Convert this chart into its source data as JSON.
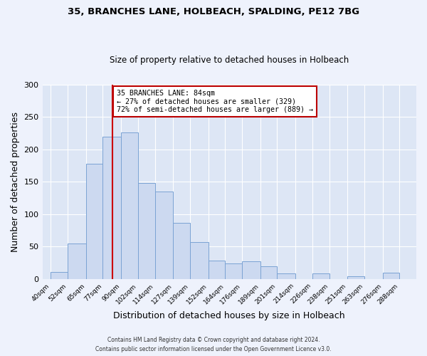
{
  "title": "35, BRANCHES LANE, HOLBEACH, SPALDING, PE12 7BG",
  "subtitle": "Size of property relative to detached houses in Holbeach",
  "xlabel": "Distribution of detached houses by size in Holbeach",
  "ylabel": "Number of detached properties",
  "bar_edges": [
    40,
    52,
    65,
    77,
    90,
    102,
    114,
    127,
    139,
    152,
    164,
    176,
    189,
    201,
    214,
    226,
    238,
    251,
    263,
    276,
    288
  ],
  "bar_heights": [
    11,
    55,
    178,
    219,
    226,
    148,
    135,
    86,
    57,
    28,
    24,
    27,
    19,
    9,
    0,
    8,
    0,
    4,
    0,
    10
  ],
  "bar_color": "#ccd9f0",
  "bar_edgecolor": "#7ba3d4",
  "vline_x": 84,
  "vline_color": "#cc0000",
  "annotation_text": "35 BRANCHES LANE: 84sqm\n← 27% of detached houses are smaller (329)\n72% of semi-detached houses are larger (889) →",
  "annotation_box_edgecolor": "#bb0000",
  "annotation_box_facecolor": "#ffffff",
  "xlim": [
    34,
    300
  ],
  "ylim": [
    0,
    300
  ],
  "yticks": [
    0,
    50,
    100,
    150,
    200,
    250,
    300
  ],
  "tick_labels": [
    "40sqm",
    "52sqm",
    "65sqm",
    "77sqm",
    "90sqm",
    "102sqm",
    "114sqm",
    "127sqm",
    "139sqm",
    "152sqm",
    "164sqm",
    "176sqm",
    "189sqm",
    "201sqm",
    "214sqm",
    "226sqm",
    "238sqm",
    "251sqm",
    "263sqm",
    "276sqm",
    "288sqm"
  ],
  "footer1": "Contains HM Land Registry data © Crown copyright and database right 2024.",
  "footer2": "Contains public sector information licensed under the Open Government Licence v3.0.",
  "background_color": "#eef2fc",
  "plot_background_color": "#dde6f5",
  "grid_color": "#ffffff"
}
